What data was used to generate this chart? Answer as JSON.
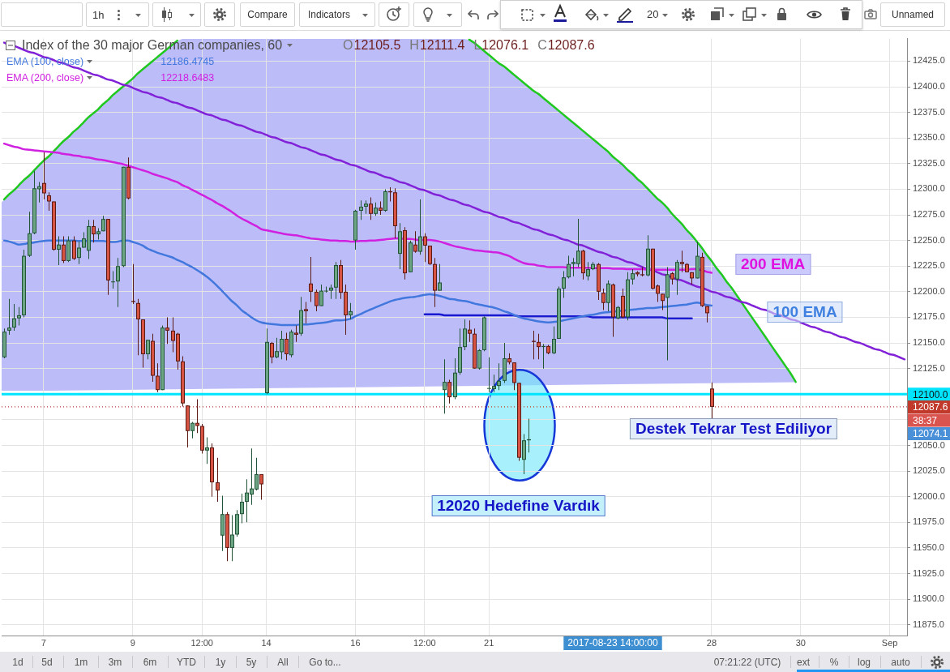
{
  "chart_data": {
    "type": "candlestick",
    "title": "Index of the 30 major German companies, 60",
    "categories": [
      null,
      null,
      null,
      null,
      null,
      null,
      null,
      null,
      "7",
      null,
      null,
      null,
      null,
      null,
      null,
      null,
      null,
      null,
      null,
      null,
      null,
      null,
      null,
      null,
      null,
      null,
      "9",
      null,
      null,
      null,
      null,
      null,
      null,
      null,
      null,
      null,
      null,
      null,
      null,
      null,
      "12:00",
      null,
      null,
      null,
      null,
      null,
      null,
      null,
      null,
      null,
      null,
      null,
      null,
      "14",
      null,
      null,
      null,
      null,
      null,
      null,
      null,
      null,
      null,
      null,
      null,
      null,
      null,
      null,
      null,
      null,
      null,
      "16",
      null,
      null,
      null,
      null,
      null,
      null,
      null,
      null,
      null,
      null,
      null,
      null,
      null,
      "12:00",
      null,
      null,
      null,
      null,
      null,
      null,
      null,
      null,
      null,
      null,
      null,
      null,
      "21",
      null,
      null,
      null,
      null,
      null,
      null,
      null,
      null,
      null,
      null,
      null,
      null,
      null,
      null,
      null,
      null,
      null,
      null,
      null,
      null,
      null,
      null,
      null,
      null,
      null,
      null,
      null,
      null,
      null,
      null,
      null,
      null,
      null,
      null,
      null,
      null,
      null,
      null,
      null,
      null,
      null,
      null,
      null,
      null,
      "28",
      null,
      null,
      null,
      null,
      null,
      null,
      null,
      null,
      null,
      null,
      null,
      null,
      null,
      null,
      null,
      null,
      null,
      "30",
      null,
      null,
      null,
      null,
      null,
      null,
      null,
      null,
      null,
      null,
      null,
      null,
      null,
      null,
      null,
      null,
      null,
      "Sep",
      null,
      null,
      null
    ],
    "ohlc": [
      [
        12136,
        12164,
        12135,
        12161
      ],
      [
        12162,
        12193,
        12158,
        12165
      ],
      [
        12165,
        12188,
        12162,
        12174
      ],
      [
        12174,
        12185,
        12167,
        12177
      ],
      [
        12177,
        12241,
        12175,
        12235
      ],
      [
        12235,
        12278,
        12234,
        12257
      ],
      [
        12257,
        12318,
        12256,
        12301
      ],
      [
        12300,
        12307,
        12287,
        12303
      ],
      [
        12306,
        12336,
        12290,
        12296
      ],
      [
        12294,
        12297,
        12279,
        12288
      ],
      [
        12288,
        12288,
        12240,
        12241
      ],
      [
        12241,
        12254,
        12226,
        12246
      ],
      [
        12246,
        12254,
        12228,
        12230
      ],
      [
        12230,
        12254,
        12229,
        12250
      ],
      [
        12250,
        12254,
        12231,
        12232
      ],
      [
        12233,
        12249,
        12227,
        12243
      ],
      [
        12243,
        12258,
        12243,
        12252
      ],
      [
        12240,
        12270,
        12232,
        12264
      ],
      [
        12264,
        12270,
        12248,
        12256
      ],
      [
        12256,
        12262,
        12251,
        12259
      ],
      [
        12259,
        12274,
        12259,
        12271
      ],
      [
        12271,
        12271,
        12197,
        12211
      ],
      [
        12210,
        12220,
        12203,
        12210
      ],
      [
        12210,
        12233,
        12185,
        12225
      ],
      [
        12225,
        12322,
        12224,
        12322
      ],
      [
        12322,
        12331,
        12290,
        12291
      ],
      [
        12191,
        12227,
        12188,
        12190
      ],
      [
        12189,
        12193,
        12138,
        12173
      ],
      [
        12173,
        12173,
        12126,
        12139
      ],
      [
        12139,
        12153,
        12134,
        12153
      ],
      [
        12152,
        12159,
        12112,
        12118
      ],
      [
        12118,
        12130,
        12102,
        12104
      ],
      [
        12104,
        12167,
        12104,
        12165
      ],
      [
        12165,
        12175,
        12149,
        12162
      ],
      [
        12162,
        12175,
        12141,
        12152
      ],
      [
        12159,
        12160,
        12124,
        12132
      ],
      [
        12132,
        12137,
        12088,
        12091
      ],
      [
        12089,
        12089,
        12048,
        12064
      ],
      [
        12064,
        12073,
        12057,
        12072
      ],
      [
        12072,
        12095,
        12062,
        12069
      ],
      [
        12069,
        12071,
        12042,
        12045
      ],
      [
        12045,
        12058,
        12032,
        12048
      ],
      [
        12048,
        12052,
        12000,
        12014
      ],
      [
        12014,
        12038,
        11995,
        12006
      ],
      [
        11962,
        12001,
        11947,
        11983
      ],
      [
        11983,
        11985,
        11937,
        11950
      ],
      [
        11950,
        11982,
        11937,
        11963
      ],
      [
        11963,
        11987,
        11961,
        11983
      ],
      [
        11983,
        12003,
        11974,
        11995
      ],
      [
        11995,
        12017,
        11975,
        12004
      ],
      [
        12002,
        12047,
        11992,
        12008
      ],
      [
        12007,
        12038,
        12006,
        12022
      ],
      [
        12022,
        12022,
        11997,
        12012
      ],
      [
        12101,
        12164,
        12100,
        12151
      ],
      [
        12150,
        12151,
        12130,
        12136
      ],
      [
        12136,
        12155,
        12135,
        12142
      ],
      [
        12141,
        12162,
        12134,
        12154
      ],
      [
        12154,
        12160,
        12133,
        12139
      ],
      [
        12138,
        12163,
        12136,
        12161
      ],
      [
        12160,
        12167,
        12151,
        12158
      ],
      [
        12159,
        12195,
        12157,
        12182
      ],
      [
        12183,
        12190,
        12169,
        12181
      ],
      [
        12208,
        12234,
        12190,
        12200
      ],
      [
        12200,
        12202,
        12181,
        12186
      ],
      [
        12186,
        12207,
        12186,
        12201
      ],
      [
        12201,
        12205,
        12199,
        12201
      ],
      [
        12201,
        12207,
        12193,
        12204
      ],
      [
        12204,
        12229,
        12193,
        12226
      ],
      [
        12226,
        12231,
        12193,
        12199
      ],
      [
        12200,
        12207,
        12158,
        12177
      ],
      [
        12177,
        12189,
        12173,
        12181
      ],
      [
        12250,
        12280,
        12241,
        12279
      ],
      [
        12279,
        12289,
        12270,
        12283
      ],
      [
        12283,
        12289,
        12276,
        12286
      ],
      [
        12286,
        12292,
        12270,
        12276
      ],
      [
        12276,
        12287,
        12274,
        12282
      ],
      [
        12282,
        12288,
        12275,
        12279
      ],
      [
        12279,
        12300,
        12278,
        12298
      ],
      [
        12298,
        12302,
        12288,
        12297
      ],
      [
        12297,
        12301,
        12252,
        12264
      ],
      [
        12237,
        12267,
        12222,
        12259
      ],
      [
        12260,
        12263,
        12212,
        12218
      ],
      [
        12219,
        12250,
        12219,
        12248
      ],
      [
        12246,
        12259,
        12238,
        12239
      ],
      [
        12239,
        12290,
        12236,
        12254
      ],
      [
        12254,
        12257,
        12229,
        12245
      ],
      [
        12245,
        12245,
        12226,
        12227
      ],
      [
        12227,
        12233,
        12185,
        12201
      ],
      [
        12201,
        12227,
        12201,
        12209
      ],
      [
        12104,
        12134,
        12081,
        12112
      ],
      [
        12112,
        12114,
        12091,
        12097
      ],
      [
        12097,
        12135,
        12095,
        12121
      ],
      [
        12121,
        12164,
        12119,
        12146
      ],
      [
        12146,
        12173,
        12143,
        12164
      ],
      [
        12163,
        12172,
        12151,
        12159
      ],
      [
        12159,
        12164,
        12125,
        12125
      ],
      [
        12125,
        12144,
        12124,
        12143
      ],
      [
        12143,
        12176,
        12142,
        12175
      ],
      [
        12106,
        12136,
        12102,
        12106
      ],
      [
        12105,
        12119,
        12102,
        12108
      ],
      [
        12108,
        12130,
        12104,
        12113
      ],
      [
        12113,
        12150,
        12111,
        12135
      ],
      [
        12135,
        12140,
        12129,
        12131
      ],
      [
        12131,
        12131,
        12104,
        12111
      ],
      [
        12111,
        12111,
        12035,
        12038
      ],
      [
        12036,
        12061,
        12022,
        12055
      ],
      [
        12055,
        12076,
        12043,
        12056
      ],
      [
        12152,
        12162,
        12134,
        12151
      ],
      [
        12151,
        12159,
        12134,
        12146
      ],
      [
        12146,
        12149,
        12125,
        12147
      ],
      [
        12147,
        12148,
        12139,
        12140
      ],
      [
        12140,
        12166,
        12139,
        12154
      ],
      [
        12154,
        12205,
        12154,
        12203
      ],
      [
        12203,
        12220,
        12194,
        12214
      ],
      [
        12214,
        12235,
        12213,
        12227
      ],
      [
        12227,
        12233,
        12215,
        12229
      ],
      [
        12227,
        12271,
        12224,
        12240
      ],
      [
        12240,
        12241,
        12212,
        12218
      ],
      [
        12215,
        12229,
        12211,
        12222
      ],
      [
        12222,
        12229,
        12221,
        12227
      ],
      [
        12227,
        12228,
        12192,
        12200
      ],
      [
        12199,
        12203,
        12182,
        12189
      ],
      [
        12189,
        12211,
        12181,
        12208
      ],
      [
        12207,
        12208,
        12156,
        12175
      ],
      [
        12174,
        12186,
        12173,
        12185
      ],
      [
        12196,
        12203,
        12174,
        12175
      ],
      [
        12175,
        12219,
        12172,
        12212
      ],
      [
        12212,
        12222,
        12207,
        12218
      ],
      [
        12219,
        12220,
        12215,
        12217
      ],
      [
        12217,
        12224,
        12215,
        12216
      ],
      [
        12216,
        12255,
        12215,
        12242
      ],
      [
        12242,
        12242,
        12202,
        12203
      ],
      [
        12206,
        12207,
        12190,
        12198
      ],
      [
        12198,
        12198,
        12182,
        12191
      ],
      [
        12194,
        12224,
        12133,
        12217
      ],
      [
        12218,
        12219,
        12207,
        12212
      ],
      [
        12212,
        12231,
        12197,
        12229
      ],
      [
        12229,
        12240,
        12219,
        12227
      ],
      [
        12227,
        12228,
        12219,
        12219
      ],
      [
        12219,
        12219,
        12207,
        12213
      ],
      [
        12213,
        12249,
        12213,
        12235
      ],
      [
        12234,
        12238,
        12185,
        12186
      ],
      [
        12186,
        12186,
        12170,
        12179
      ],
      [
        12105.5,
        12111.4,
        12076.1,
        12087.6
      ],
      null,
      null,
      null,
      null,
      null,
      null,
      null,
      null,
      null,
      null,
      null,
      null,
      null,
      null,
      null,
      null,
      null,
      null,
      null,
      null,
      null,
      null,
      null,
      null,
      null,
      null,
      null,
      null,
      null,
      null,
      null,
      null,
      null,
      null,
      null,
      null,
      null,
      null,
      null
    ],
    "ylim": [
      11864.5,
      12447
    ],
    "yticks": [
      {
        "value": 11875,
        "label": "11875.0"
      },
      {
        "value": 11900,
        "label": "11900.0"
      },
      {
        "value": 11925,
        "label": "11925.0"
      },
      {
        "value": 11950,
        "label": "11950.0"
      },
      {
        "value": 11975,
        "label": "11975.0"
      },
      {
        "value": 12000,
        "label": "12000.0"
      },
      {
        "value": 12025,
        "label": "12025.0"
      },
      {
        "value": 12050,
        "label": "12050.0"
      },
      {
        "value": 12075,
        "label": null
      },
      {
        "value": 12100,
        "label": null
      },
      {
        "value": 12125,
        "label": "12125.0"
      },
      {
        "value": 12150,
        "label": "12150.0"
      },
      {
        "value": 12175,
        "label": "12175.0"
      },
      {
        "value": 12200,
        "label": "12200.0"
      },
      {
        "value": 12225,
        "label": "12225.0"
      },
      {
        "value": 12250,
        "label": "12250.0"
      },
      {
        "value": 12275,
        "label": "12275.0"
      },
      {
        "value": 12300,
        "label": "12300.0"
      },
      {
        "value": 12325,
        "label": "12325.0"
      },
      {
        "value": 12350,
        "label": "12350.0"
      },
      {
        "value": 12375,
        "label": "12375.0"
      },
      {
        "value": 12400,
        "label": "12400.0"
      },
      {
        "value": 12425,
        "label": "12425.0"
      }
    ],
    "series": [
      {
        "name": "EMA (100, close)",
        "type": "line",
        "color": "#4278dd",
        "values": [
          12250,
          12249,
          12247.5,
          12246,
          12246.5,
          12247.5,
          12248,
          12249,
          12249.5,
          12250,
          12250,
          12250,
          12250,
          12250,
          12250,
          12249.5,
          12249.5,
          12249.5,
          12249.5,
          12249.5,
          12249.5,
          12249,
          12248.5,
          12249,
          12250,
          12250,
          12248.5,
          12247,
          12245,
          12242,
          12240,
          12238,
          12236.5,
          12235,
          12233.5,
          12231,
          12229,
          12226.5,
          12224,
          12221,
          12218,
          12214.5,
          12210.5,
          12206,
          12201,
          12196,
          12191,
          12187,
          12182,
          12178.5,
          12175,
          12172,
          12170,
          12169,
          12168.5,
          12168,
          12167.5,
          12167.5,
          12167.5,
          12167.5,
          12168,
          12168,
          12168.5,
          12169,
          12169.5,
          12170,
          12171,
          12172,
          12172,
          12172.5,
          12173.5,
          12176,
          12178,
          12180.5,
          12182.5,
          12184.5,
          12186.5,
          12188.5,
          12190.5,
          12192,
          12193,
          12194,
          12194.5,
          12195,
          12196,
          12197,
          12197.5,
          12197,
          12196,
          12194.5,
          12193,
          12192.5,
          12191.5,
          12191,
          12190,
          12188.5,
          12187.5,
          12186.5,
          12185.5,
          12184.5,
          12183,
          12181,
          12179.5,
          12177.5,
          12175.5,
          12174,
          12173,
          12172,
          12171,
          12170.5,
          12170,
          12170.5,
          12171,
          12172,
          12173,
          12174,
          12175,
          12176,
          12177,
          12177.5,
          12178.5,
          12179.5,
          12180,
          12180.5,
          12181,
          12181.5,
          12182,
          12182.5,
          12183,
          12183.5,
          12184,
          12184,
          12184.5,
          12185,
          12185.5,
          12186,
          12186.5,
          12187,
          12187.5,
          12188.5,
          12189.5,
          12188.5,
          12187,
          12186.5,
          null,
          null,
          null,
          null,
          null,
          null,
          null,
          null,
          null,
          null,
          null,
          null,
          null,
          null,
          null,
          null,
          null,
          null,
          null,
          null,
          null,
          null,
          null,
          null,
          null,
          null,
          null,
          null,
          null,
          null,
          null,
          null,
          null,
          null,
          null,
          null,
          null,
          null,
          null
        ]
      },
      {
        "name": "EMA (200, close)",
        "type": "line",
        "color": "#d020e0",
        "values": [
          12344.5,
          12343,
          12341.5,
          12340.5,
          12339,
          12338.5,
          12338,
          12337.5,
          12337,
          12336.5,
          12336,
          12335.5,
          12334.5,
          12334,
          12333,
          12332.5,
          12331.5,
          12331,
          12330,
          12329,
          12328.5,
          12327.5,
          12326.5,
          12325.5,
          12324.5,
          12323,
          12321.5,
          12320,
          12318.5,
          12317,
          12315,
          12313.5,
          12312,
          12310.5,
          12308.5,
          12307,
          12304,
          12302,
          12299.5,
          12297,
          12294.5,
          12292,
          12289.5,
          12286.5,
          12284,
          12281,
          12278,
          12274.5,
          12271.5,
          12269,
          12266.5,
          12264,
          12261,
          12260,
          12259,
          12258,
          12257,
          12256,
          12255.5,
          12255,
          12254,
          12253,
          12252,
          12251.5,
          12251,
          12250.5,
          12250,
          12250,
          12249.5,
          12249.5,
          12249,
          12249,
          12249.5,
          12249.5,
          12250,
          12250,
          12250.5,
          12251,
          12251.5,
          12252,
          12252,
          12251.5,
          12251.5,
          12251,
          12250.5,
          12250.5,
          12250.5,
          12250,
          12249,
          12247.5,
          12246,
          12244.5,
          12243.5,
          12242.5,
          12241.5,
          12240.5,
          12240,
          12239.5,
          12239,
          12238.5,
          12238,
          12236.5,
          12235,
          12232.5,
          12230,
          12228,
          12227,
          12226.5,
          12225.5,
          12225,
          12224,
          12224,
          12224,
          12224,
          12223.5,
          12223.5,
          12223.5,
          12223.5,
          12223.5,
          12223,
          12223,
          12223,
          12223,
          12222.5,
          12222.5,
          12222.5,
          12222,
          12222,
          12222,
          12222,
          12221.5,
          12221.5,
          12221.5,
          12221.5,
          12221.5,
          12221.5,
          12221.5,
          12221.5,
          12221.5,
          12222,
          12222,
          12221,
          12219.5,
          12218.5,
          null,
          null,
          null,
          null,
          null,
          null,
          null,
          null,
          null,
          null,
          null,
          null,
          null,
          null,
          null,
          null,
          null,
          null,
          null,
          null,
          null,
          null,
          null,
          null,
          null,
          null,
          null,
          null,
          null,
          null,
          null,
          null,
          null,
          null,
          null,
          null,
          null,
          null,
          null
        ]
      },
      {
        "type": "line",
        "color": "#8222d8",
        "values": [
          12443,
          12441,
          12440,
          12438,
          12436,
          12434,
          12433,
          12431,
          12429,
          12428,
          12426,
          12424,
          12423,
          12421,
          12419,
          12418,
          12416,
          12414,
          12412,
          12411,
          12409,
          12407,
          12406,
          12404,
          12402,
          12401,
          12399,
          12397,
          12395,
          12394,
          12392,
          12390,
          12389,
          12387,
          12385,
          12384,
          12382,
          12380,
          12379,
          12377,
          12375,
          12373,
          12372,
          12370,
          12368,
          12367,
          12365,
          12363,
          12362,
          12360,
          12358,
          12356,
          12355,
          12353,
          12351,
          12350,
          12348,
          12346,
          12345,
          12343,
          12341,
          12340,
          12338,
          12336,
          12334,
          12333,
          12331,
          12329,
          12328,
          12326,
          12324,
          12323,
          12321,
          12319,
          12317,
          12316,
          12314,
          12312,
          12311,
          12309,
          12307,
          12306,
          12304,
          12302,
          12300,
          12299,
          12297,
          12295,
          12294,
          12292,
          12290,
          12289,
          12287,
          12285,
          12284,
          12282,
          12280,
          12278,
          12277,
          12275,
          12273,
          12272,
          12270,
          12268,
          12267,
          12265,
          12263,
          12261,
          12260,
          12258,
          12256,
          12255,
          12253,
          12251,
          12250,
          12248,
          12246,
          12245,
          12243,
          12241,
          12239,
          12238,
          12236,
          12234,
          12233,
          12231,
          12229,
          12228,
          12226,
          12224,
          12222,
          12221,
          12219,
          12217,
          12216,
          12214,
          12212,
          12211,
          12209,
          12207,
          12205,
          12204,
          12202,
          12200,
          12199,
          12197,
          12195,
          12194,
          12192,
          12190,
          12189,
          12187,
          12185,
          12183,
          12182,
          12180,
          12178,
          12177,
          12175,
          12173,
          12172,
          12170,
          12168,
          12166,
          12165,
          12163,
          12161,
          12160,
          12158,
          12156,
          12155,
          12153,
          12151,
          12150,
          12148,
          12146,
          12144,
          12143,
          12141,
          12139,
          12138,
          12136,
          12134
        ]
      },
      {
        "type": "line",
        "color": "#1a1ad0",
        "values": [
          null,
          null,
          null,
          null,
          null,
          null,
          null,
          null,
          null,
          null,
          null,
          null,
          null,
          null,
          null,
          null,
          null,
          null,
          null,
          null,
          null,
          null,
          null,
          null,
          null,
          null,
          null,
          null,
          null,
          null,
          null,
          null,
          null,
          null,
          null,
          null,
          null,
          null,
          null,
          null,
          null,
          null,
          null,
          null,
          null,
          null,
          null,
          null,
          null,
          null,
          null,
          null,
          null,
          null,
          null,
          null,
          null,
          null,
          null,
          null,
          null,
          null,
          null,
          null,
          null,
          null,
          null,
          null,
          null,
          null,
          null,
          null,
          null,
          null,
          null,
          null,
          null,
          null,
          null,
          null,
          null,
          null,
          null,
          null,
          null,
          12178,
          12178,
          12178,
          12178,
          12177,
          12177,
          12177,
          12177,
          12177,
          12177,
          12177,
          12177,
          12177,
          12177,
          12177,
          12177,
          12177,
          12177,
          12177,
          12176,
          12176,
          12176,
          12176,
          12176,
          12176,
          12176,
          12176,
          12176,
          12176,
          12176,
          12176,
          12176,
          12176,
          12176,
          12175,
          12175,
          12175,
          12175,
          12175,
          12175,
          12175,
          12175,
          12175,
          12175,
          12175,
          12175,
          12175,
          12175,
          12175,
          12174,
          12174,
          12174,
          12174,
          12174,
          12174,
          null,
          null,
          null,
          null,
          null,
          null,
          null,
          null,
          null,
          null,
          null,
          null,
          null,
          null,
          null,
          null,
          null,
          null,
          null,
          null,
          null,
          null,
          null,
          null,
          null,
          null,
          null,
          null,
          null,
          null,
          null,
          null,
          null,
          null,
          null,
          null,
          null,
          null,
          null,
          null,
          null,
          null,
          null
        ]
      },
      {
        "type": "line",
        "color": "#20c820",
        "values": [
          12290,
          12295,
          12299,
          12304,
          12309,
          12313,
          12318,
          12323,
          12328,
          12332,
          12337,
          12342,
          12347,
          12351,
          12356,
          12360,
          12365,
          12370,
          12374,
          12378,
          12383,
          12387,
          12392,
          12396,
          12400,
          12404,
          12408,
          12413,
          12417,
          12421,
          12425,
          12429,
          12433,
          12437,
          12441,
          12445,
          null,
          null,
          null,
          null,
          null,
          null,
          null,
          null,
          null,
          null,
          null,
          null,
          null,
          null,
          null,
          null,
          null,
          null,
          null,
          null,
          null,
          null,
          null,
          null,
          null,
          null,
          null,
          null,
          null,
          null,
          null,
          null,
          null,
          null,
          null,
          null,
          null,
          null,
          null,
          null,
          null,
          null,
          null,
          null,
          null,
          null,
          null,
          null,
          null,
          null,
          null,
          null,
          null,
          null,
          null,
          null,
          null,
          null,
          12446,
          12443,
          12439,
          12435,
          12431,
          12427,
          12423,
          12420,
          12416,
          12412,
          12408,
          12404,
          12400,
          12396,
          12393,
          12389,
          12385,
          12381,
          12377,
          12373,
          12369,
          12365,
          12361,
          12357,
          12353,
          12349,
          12345,
          12341,
          12337,
          12332,
          12328,
          12324,
          12319,
          12315,
          12310,
          12306,
          12301,
          12296,
          12291,
          12287,
          12282,
          12276,
          12271,
          12266,
          12260,
          12255,
          12249,
          12243,
          12236,
          12230,
          12223,
          12217,
          12210,
          12204,
          12197,
          12190,
          12183,
          12176,
          12169,
          12162,
          12155,
          12148,
          12141,
          12134,
          12127,
          12120,
          12112,
          null,
          null,
          null,
          null,
          null,
          null,
          null,
          null,
          null,
          null,
          null,
          null,
          null,
          null,
          null,
          null,
          null,
          null,
          null,
          null,
          null,
          null
        ]
      }
    ],
    "ref_lines": [
      {
        "axis": "y",
        "value": 12100,
        "label": "12100.0",
        "color": "#00e5ff"
      },
      {
        "axis": "y",
        "value": 12087.6,
        "label": "12087.6",
        "color": "#c0392b",
        "line_style": "dotted"
      }
    ],
    "grid": true,
    "legend": "top left",
    "annotations": [
      "O12105.5 H12111.4 L12076.1 C12087.6",
      "12186.4745",
      "12218.6483",
      "200 EMA",
      "100 EMA",
      "Destek Tekrar Test Ediliyor",
      "12020 Hedefine Vardık",
      "38:37",
      "12074.1",
      "2017-08-23 14:00:00",
      "1h",
      "Compare",
      "Indicators",
      "20",
      "Unnamed",
      "1d",
      "5d",
      "1m",
      "3m",
      "6m",
      "YTD",
      "1y",
      "5y",
      "All",
      "Go to...",
      "07:21:22 (UTC)",
      "ext",
      "%",
      "log",
      "auto"
    ]
  }
}
